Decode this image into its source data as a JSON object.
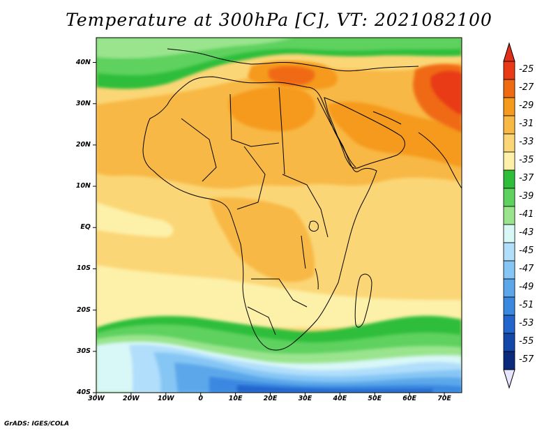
{
  "title": "Temperature at 300hPa [C], VT: 2021082100",
  "credit": "GrADS: IGES/COLA",
  "map": {
    "variable": "Temperature",
    "level": "300hPa",
    "units": "C",
    "valid_time": "2021082100",
    "lon_range": [
      -30,
      75
    ],
    "lat_range": [
      -40,
      46
    ],
    "lat_labels": [
      {
        "lat": 40,
        "text": "40N"
      },
      {
        "lat": 30,
        "text": "30N"
      },
      {
        "lat": 20,
        "text": "20N"
      },
      {
        "lat": 10,
        "text": "10N"
      },
      {
        "lat": 0,
        "text": "EQ"
      },
      {
        "lat": -10,
        "text": "10S"
      },
      {
        "lat": -20,
        "text": "20S"
      },
      {
        "lat": -30,
        "text": "30S"
      },
      {
        "lat": -40,
        "text": "40S"
      }
    ],
    "lon_labels": [
      {
        "lon": -30,
        "text": "30W"
      },
      {
        "lon": -20,
        "text": "20W"
      },
      {
        "lon": -10,
        "text": "10W"
      },
      {
        "lon": 0,
        "text": "0"
      },
      {
        "lon": 10,
        "text": "10E"
      },
      {
        "lon": 20,
        "text": "20E"
      },
      {
        "lon": 30,
        "text": "30E"
      },
      {
        "lon": 40,
        "text": "40E"
      },
      {
        "lon": 50,
        "text": "50E"
      },
      {
        "lon": 60,
        "text": "60E"
      },
      {
        "lon": 70,
        "text": "70E"
      }
    ]
  },
  "colorbar": {
    "labels": [
      "-25",
      "-27",
      "-29",
      "-31",
      "-33",
      "-35",
      "-37",
      "-39",
      "-41",
      "-43",
      "-45",
      "-47",
      "-49",
      "-51",
      "-53",
      "-55",
      "-57"
    ],
    "colors": [
      "#e83a16",
      "#f06a12",
      "#f59a1c",
      "#f8b844",
      "#fbd676",
      "#fdf0a8",
      "#2fbe3a",
      "#5fd15f",
      "#9ae48e",
      "#d8f7f7",
      "#b0defb",
      "#86c6f4",
      "#5ba7ea",
      "#3b88e0",
      "#2265cc",
      "#1447aa",
      "#0a2a7c"
    ],
    "top_color": "#e0301a",
    "bottom_color": "#e6e6ff"
  }
}
